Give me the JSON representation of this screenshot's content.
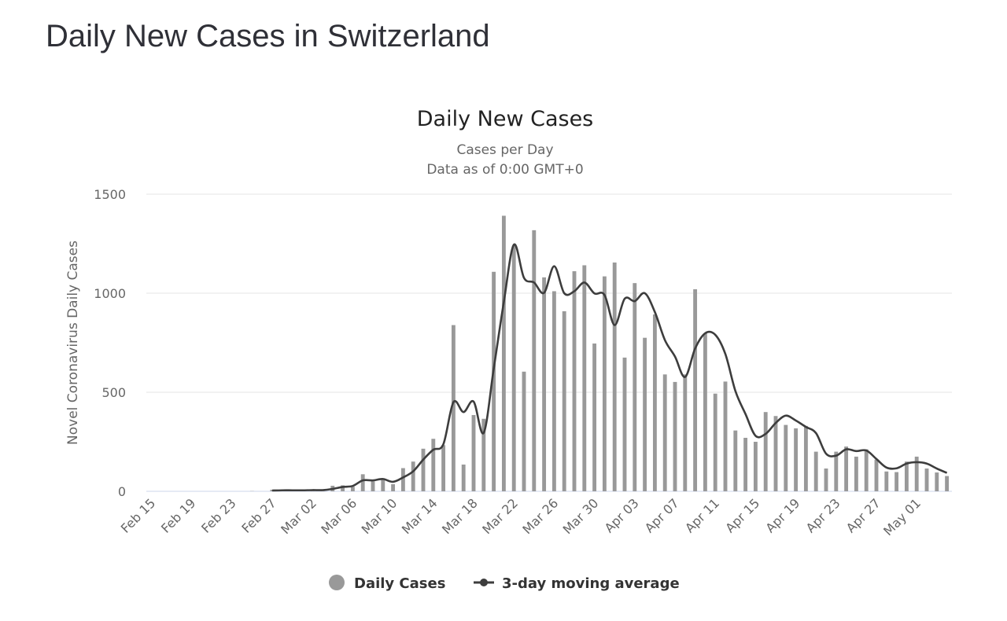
{
  "page_title": "Daily New Cases in Switzerland",
  "chart_data": {
    "type": "bar",
    "title": "Daily New Cases",
    "subtitle": "Cases per Day",
    "subtitle2": "Data as of 0:00 GMT+0",
    "ylabel": "Novel Coronavirus Daily Cases",
    "xlabel": "",
    "ylim": [
      0,
      1500
    ],
    "yticks": [
      "0",
      "500",
      "1000",
      "1500"
    ],
    "x_tick_labels": [
      "Feb 15",
      "Feb 19",
      "Feb 23",
      "Feb 27",
      "Mar 02",
      "Mar 06",
      "Mar 10",
      "Mar 14",
      "Mar 18",
      "Mar 22",
      "Mar 26",
      "Mar 30",
      "Apr 03",
      "Apr 07",
      "Apr 11",
      "Apr 15",
      "Apr 19",
      "Apr 23",
      "Apr 27",
      "May 01"
    ],
    "categories": [
      "Feb 15",
      "Feb 16",
      "Feb 17",
      "Feb 18",
      "Feb 19",
      "Feb 20",
      "Feb 21",
      "Feb 22",
      "Feb 23",
      "Feb 24",
      "Feb 25",
      "Feb 26",
      "Feb 27",
      "Feb 28",
      "Feb 29",
      "Mar 01",
      "Mar 02",
      "Mar 03",
      "Mar 04",
      "Mar 05",
      "Mar 06",
      "Mar 07",
      "Mar 08",
      "Mar 09",
      "Mar 10",
      "Mar 11",
      "Mar 12",
      "Mar 13",
      "Mar 14",
      "Mar 15",
      "Mar 16",
      "Mar 17",
      "Mar 18",
      "Mar 19",
      "Mar 20",
      "Mar 21",
      "Mar 22",
      "Mar 23",
      "Mar 24",
      "Mar 25",
      "Mar 26",
      "Mar 27",
      "Mar 28",
      "Mar 29",
      "Mar 30",
      "Mar 31",
      "Apr 01",
      "Apr 02",
      "Apr 03",
      "Apr 04",
      "Apr 05",
      "Apr 06",
      "Apr 07",
      "Apr 08",
      "Apr 09",
      "Apr 10",
      "Apr 11",
      "Apr 12",
      "Apr 13",
      "Apr 14",
      "Apr 15",
      "Apr 16",
      "Apr 17",
      "Apr 18",
      "Apr 19",
      "Apr 20",
      "Apr 21",
      "Apr 22",
      "Apr 23",
      "Apr 24",
      "Apr 25",
      "Apr 26",
      "Apr 27",
      "Apr 28",
      "Apr 29",
      "Apr 30",
      "May 01",
      "May 02",
      "May 03",
      "May 04"
    ],
    "series": [
      {
        "name": "Daily Cases",
        "type": "bar",
        "color": "#999999",
        "values": [
          0,
          0,
          0,
          0,
          0,
          0,
          0,
          0,
          0,
          0,
          1,
          0,
          8,
          3,
          5,
          6,
          8,
          4,
          28,
          30,
          23,
          86,
          51,
          58,
          36,
          117,
          150,
          215,
          265,
          233,
          839,
          135,
          385,
          366,
          1108,
          1391,
          1240,
          604,
          1318,
          1080,
          1010,
          909,
          1111,
          1141,
          746,
          1085,
          1155,
          675,
          1051,
          775,
          893,
          590,
          552,
          590,
          1020,
          797,
          493,
          554,
          307,
          270,
          250,
          400,
          380,
          335,
          318,
          330,
          200,
          115,
          200,
          226,
          175,
          212,
          160,
          100,
          97,
          150,
          175,
          115,
          95,
          77
        ]
      },
      {
        "name": "3-day moving average",
        "type": "line",
        "color": "#3d3d3d",
        "values": [
          null,
          null,
          null,
          null,
          null,
          null,
          null,
          null,
          null,
          null,
          null,
          null,
          4,
          5,
          5,
          5,
          6,
          6,
          12,
          22,
          27,
          55,
          55,
          62,
          48,
          70,
          101,
          160,
          210,
          238,
          450,
          400,
          453,
          295,
          620,
          955,
          1245,
          1078,
          1054,
          1002,
          1136,
          1000,
          1010,
          1054,
          999,
          991,
          839,
          972,
          960,
          1000,
          905,
          763,
          680,
          577,
          721,
          798,
          790,
          693,
          506,
          390,
          280,
          290,
          345,
          382,
          357,
          325,
          294,
          190,
          180,
          212,
          203,
          206,
          163,
          120,
          116,
          140,
          147,
          140,
          115,
          93
        ]
      }
    ],
    "legend": [
      "Daily Cases",
      "3-day moving average"
    ],
    "legend_position": "bottom-center"
  }
}
